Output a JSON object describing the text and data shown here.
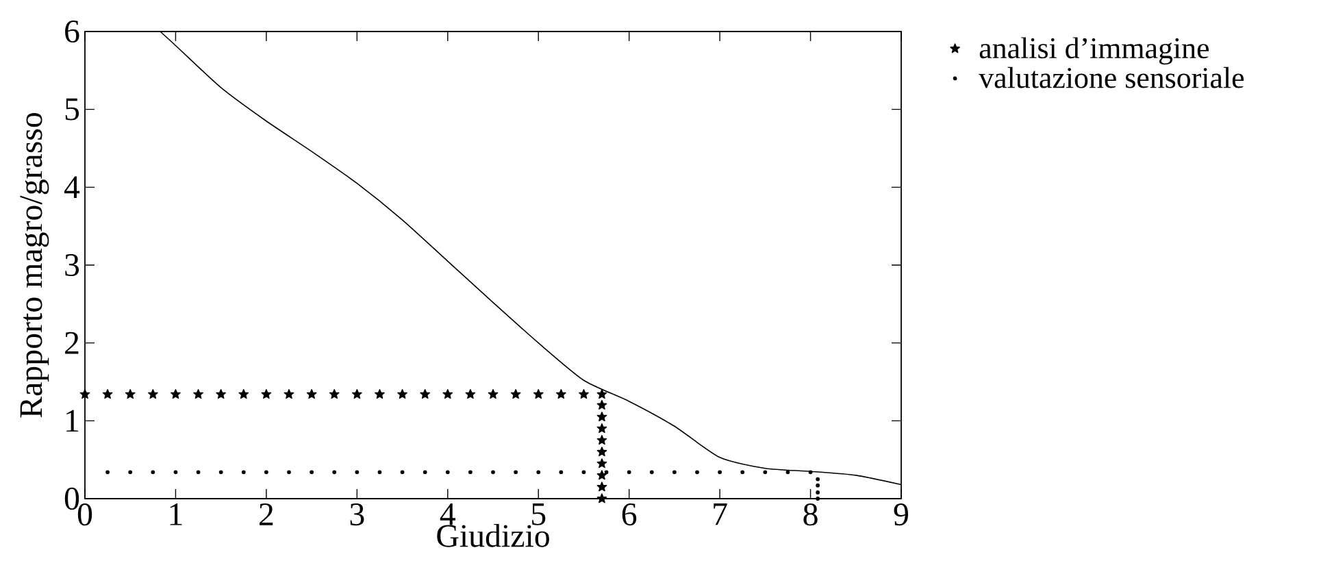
{
  "chart_data": {
    "type": "line",
    "xlabel": "Giudizio",
    "ylabel": "Rapporto magro/grasso",
    "xlim": [
      0,
      9
    ],
    "ylim": [
      0,
      6
    ],
    "xticks": [
      0,
      1,
      2,
      3,
      4,
      5,
      6,
      7,
      8,
      9
    ],
    "yticks": [
      0,
      1,
      2,
      3,
      4,
      5,
      6
    ],
    "legend": "top right",
    "series": [
      {
        "color": "#000000",
        "marker": "none",
        "line_style": "solid",
        "x": [
          0.83,
          1,
          1.5,
          2,
          2.5,
          3,
          3.5,
          4,
          4.5,
          5,
          5.5,
          6,
          6.5,
          7,
          7.5,
          8,
          8.5,
          9
        ],
        "values": [
          6,
          5.82,
          5.28,
          4.85,
          4.46,
          4.05,
          3.58,
          3.05,
          2.52,
          2.0,
          1.52,
          1.25,
          0.93,
          0.53,
          0.39,
          0.35,
          0.3,
          0.18
        ]
      },
      {
        "type": "scatter",
        "name": "analisi d’immagine",
        "color": "#000000",
        "marker": "star",
        "x": [
          0,
          0.25,
          0.5,
          0.75,
          1,
          1.25,
          1.5,
          1.75,
          2,
          2.25,
          2.5,
          2.75,
          3,
          3.25,
          3.5,
          3.75,
          4,
          4.25,
          4.5,
          4.75,
          5,
          5.25,
          5.5,
          5.7,
          5.7,
          5.7,
          5.7,
          5.7,
          5.7,
          5.7,
          5.7,
          5.7,
          5.7
        ],
        "values": [
          1.34,
          1.34,
          1.34,
          1.34,
          1.34,
          1.34,
          1.34,
          1.34,
          1.34,
          1.34,
          1.34,
          1.34,
          1.34,
          1.34,
          1.34,
          1.34,
          1.34,
          1.34,
          1.34,
          1.34,
          1.34,
          1.34,
          1.34,
          1.34,
          1.2,
          1.05,
          0.9,
          0.75,
          0.6,
          0.45,
          0.3,
          0.15,
          0
        ]
      },
      {
        "type": "scatter",
        "name": "valutazione sensoriale",
        "color": "#000000",
        "marker": "circle",
        "x": [
          0.25,
          0.5,
          0.75,
          1,
          1.25,
          1.5,
          1.75,
          2,
          2.25,
          2.5,
          2.75,
          3,
          3.25,
          3.5,
          3.75,
          4,
          4.25,
          4.5,
          4.75,
          5,
          5.25,
          5.5,
          5.75,
          6,
          6.25,
          6.5,
          6.75,
          7,
          7.25,
          7.5,
          7.75,
          8,
          8.08,
          8.08,
          8.08,
          8.08
        ],
        "values": [
          0.34,
          0.34,
          0.34,
          0.34,
          0.34,
          0.34,
          0.34,
          0.34,
          0.34,
          0.34,
          0.34,
          0.34,
          0.34,
          0.34,
          0.34,
          0.34,
          0.34,
          0.34,
          0.34,
          0.34,
          0.34,
          0.34,
          0.34,
          0.34,
          0.34,
          0.34,
          0.34,
          0.34,
          0.34,
          0.34,
          0.34,
          0.34,
          0.25,
          0.17,
          0.08,
          0
        ]
      }
    ]
  }
}
